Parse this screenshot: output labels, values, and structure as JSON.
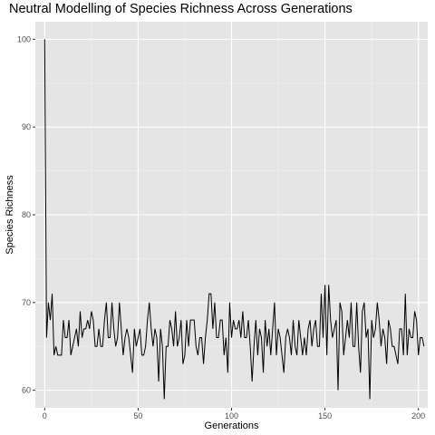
{
  "chart_data": {
    "type": "line",
    "title": "Neutral Modelling of Species Richness Across Generations",
    "xlabel": "Generations",
    "ylabel": "Species Richness",
    "xlim": [
      -5,
      205
    ],
    "ylim": [
      58,
      102
    ],
    "x_ticks": [
      0,
      50,
      100,
      150,
      200
    ],
    "y_ticks": [
      60,
      70,
      80,
      90,
      100
    ],
    "grid": true,
    "legend": "none",
    "colors": {
      "panel_background": "#e5e5e5",
      "grid_major": "#ffffff",
      "grid_minor": "#f1f1f1",
      "line": "#000000",
      "tick_text": "#4d4d4d"
    },
    "series": [
      {
        "x_start": 0,
        "x_step": 1,
        "values": [
          100,
          66,
          70,
          68,
          71,
          64,
          65,
          64,
          64,
          64,
          68,
          66,
          66,
          68,
          64,
          65,
          66,
          67,
          65,
          69,
          66,
          67,
          67,
          68,
          67,
          69,
          68,
          65,
          65,
          67,
          65,
          65,
          68,
          70,
          66,
          66,
          70,
          67,
          65,
          66,
          70,
          67,
          64,
          66,
          67,
          66,
          64,
          62,
          67,
          65,
          66,
          67,
          64,
          64,
          65,
          68,
          70,
          67,
          65,
          67,
          66,
          61,
          67,
          65,
          59,
          65,
          65,
          68,
          67,
          65,
          69,
          65,
          66,
          68,
          63,
          64,
          68,
          65,
          68,
          68,
          68,
          65,
          64,
          66,
          66,
          63,
          66,
          68,
          71,
          71,
          67,
          70,
          66,
          66,
          68,
          68,
          64,
          66,
          62,
          70,
          66,
          68,
          67,
          67,
          68,
          66,
          69,
          66,
          66,
          68,
          65,
          61,
          65,
          68,
          64,
          67,
          66,
          62,
          68,
          65,
          67,
          64,
          67,
          70,
          64,
          67,
          66,
          64,
          62,
          66,
          67,
          66,
          64,
          68,
          65,
          64,
          68,
          66,
          64,
          66,
          64,
          67,
          68,
          65,
          67,
          68,
          65,
          65,
          71,
          66,
          72,
          64,
          72,
          68,
          66,
          67,
          68,
          60,
          70,
          69,
          64,
          66,
          68,
          66,
          70,
          65,
          65,
          70,
          65,
          62,
          69,
          70,
          66,
          67,
          59,
          68,
          66,
          67,
          70,
          68,
          65,
          67,
          66,
          63,
          68,
          67,
          65,
          65,
          64,
          63,
          67,
          67,
          64,
          71,
          64,
          67,
          66,
          66,
          69,
          68,
          64,
          66,
          66,
          65
        ]
      }
    ]
  }
}
